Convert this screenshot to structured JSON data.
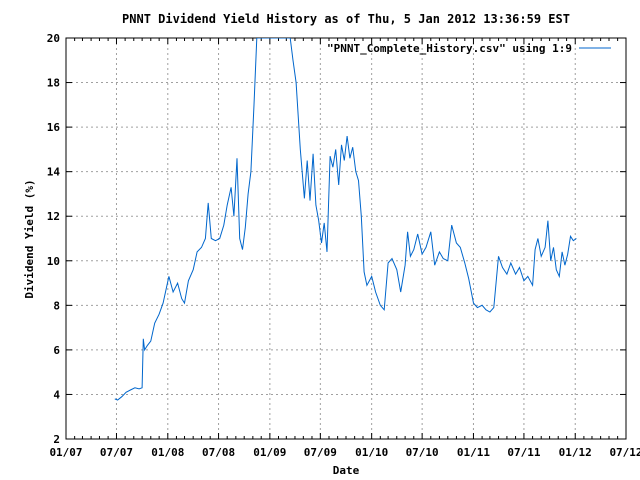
{
  "chart_data": {
    "type": "line",
    "title": "PNNT Dividend Yield History as of Thu, 5 Jan 2012 13:36:59 EST",
    "xlabel": "Date",
    "ylabel": "Dividend Yield (%)",
    "xlim": [
      "2007-01-01",
      "2012-07-01"
    ],
    "ylim": [
      2,
      20
    ],
    "x_ticks": [
      "01/07",
      "07/07",
      "01/08",
      "07/08",
      "01/09",
      "07/09",
      "01/10",
      "07/10",
      "01/11",
      "07/11",
      "01/12",
      "07/12"
    ],
    "y_ticks": [
      2,
      4,
      6,
      8,
      10,
      12,
      14,
      16,
      18,
      20
    ],
    "grid": true,
    "legend_position": "top-right",
    "series": [
      {
        "name": "\"PNNT_Complete_History.csv\" using 1:9",
        "color": "#0066cc",
        "points": [
          [
            "2007-06-25",
            3.8
          ],
          [
            "2007-07-05",
            3.75
          ],
          [
            "2007-07-20",
            3.9
          ],
          [
            "2007-08-05",
            4.1
          ],
          [
            "2007-08-20",
            4.2
          ],
          [
            "2007-09-05",
            4.3
          ],
          [
            "2007-09-20",
            4.25
          ],
          [
            "2007-10-01",
            4.3
          ],
          [
            "2007-10-05",
            6.5
          ],
          [
            "2007-10-10",
            6.0
          ],
          [
            "2007-10-20",
            6.2
          ],
          [
            "2007-11-01",
            6.4
          ],
          [
            "2007-11-15",
            7.2
          ],
          [
            "2007-12-01",
            7.6
          ],
          [
            "2007-12-15",
            8.1
          ],
          [
            "2008-01-05",
            9.3
          ],
          [
            "2008-01-20",
            8.6
          ],
          [
            "2008-02-05",
            9.0
          ],
          [
            "2008-02-20",
            8.3
          ],
          [
            "2008-03-01",
            8.1
          ],
          [
            "2008-03-15",
            9.1
          ],
          [
            "2008-04-01",
            9.6
          ],
          [
            "2008-04-15",
            10.4
          ],
          [
            "2008-05-01",
            10.6
          ],
          [
            "2008-05-15",
            11.0
          ],
          [
            "2008-05-25",
            12.6
          ],
          [
            "2008-06-05",
            11.0
          ],
          [
            "2008-06-20",
            10.9
          ],
          [
            "2008-07-05",
            11.0
          ],
          [
            "2008-07-20",
            11.6
          ],
          [
            "2008-08-01",
            12.5
          ],
          [
            "2008-08-15",
            13.3
          ],
          [
            "2008-08-25",
            12.0
          ],
          [
            "2008-09-05",
            14.6
          ],
          [
            "2008-09-15",
            11.0
          ],
          [
            "2008-09-25",
            10.5
          ],
          [
            "2008-10-05",
            11.5
          ],
          [
            "2008-10-15",
            13.0
          ],
          [
            "2008-10-25",
            14.0
          ],
          [
            "2008-11-05",
            17.0
          ],
          [
            "2008-11-15",
            20.0
          ],
          [
            "2009-01-01",
            20.0
          ],
          [
            "2009-03-01",
            20.0
          ],
          [
            "2009-03-15",
            20.0
          ],
          [
            "2009-03-25",
            19.0
          ],
          [
            "2009-04-05",
            18.0
          ],
          [
            "2009-04-20",
            15.0
          ],
          [
            "2009-05-05",
            12.8
          ],
          [
            "2009-05-15",
            14.5
          ],
          [
            "2009-05-25",
            12.7
          ],
          [
            "2009-06-05",
            14.8
          ],
          [
            "2009-06-15",
            12.5
          ],
          [
            "2009-06-25",
            11.8
          ],
          [
            "2009-07-05",
            10.8
          ],
          [
            "2009-07-15",
            11.7
          ],
          [
            "2009-07-25",
            10.4
          ],
          [
            "2009-08-05",
            14.7
          ],
          [
            "2009-08-15",
            14.2
          ],
          [
            "2009-08-25",
            15.0
          ],
          [
            "2009-09-05",
            13.4
          ],
          [
            "2009-09-15",
            15.2
          ],
          [
            "2009-09-25",
            14.5
          ],
          [
            "2009-10-05",
            15.6
          ],
          [
            "2009-10-15",
            14.6
          ],
          [
            "2009-10-25",
            15.1
          ],
          [
            "2009-11-05",
            14.0
          ],
          [
            "2009-11-15",
            13.6
          ],
          [
            "2009-11-25",
            12.0
          ],
          [
            "2009-12-05",
            9.5
          ],
          [
            "2009-12-15",
            8.9
          ],
          [
            "2010-01-01",
            9.3
          ],
          [
            "2010-01-15",
            8.6
          ],
          [
            "2010-02-01",
            8.0
          ],
          [
            "2010-02-15",
            7.8
          ],
          [
            "2010-03-01",
            9.9
          ],
          [
            "2010-03-15",
            10.1
          ],
          [
            "2010-04-01",
            9.6
          ],
          [
            "2010-04-15",
            8.6
          ],
          [
            "2010-05-01",
            9.8
          ],
          [
            "2010-05-10",
            11.3
          ],
          [
            "2010-05-20",
            10.2
          ],
          [
            "2010-06-01",
            10.5
          ],
          [
            "2010-06-15",
            11.2
          ],
          [
            "2010-07-01",
            10.3
          ],
          [
            "2010-07-15",
            10.6
          ],
          [
            "2010-08-01",
            11.3
          ],
          [
            "2010-08-15",
            9.8
          ],
          [
            "2010-09-01",
            10.4
          ],
          [
            "2010-09-15",
            10.1
          ],
          [
            "2010-10-01",
            10.0
          ],
          [
            "2010-10-15",
            11.6
          ],
          [
            "2010-11-01",
            10.8
          ],
          [
            "2010-11-15",
            10.6
          ],
          [
            "2010-12-01",
            9.9
          ],
          [
            "2010-12-15",
            9.2
          ],
          [
            "2011-01-01",
            8.1
          ],
          [
            "2011-01-15",
            7.9
          ],
          [
            "2011-02-01",
            8.0
          ],
          [
            "2011-02-15",
            7.8
          ],
          [
            "2011-03-01",
            7.7
          ],
          [
            "2011-03-15",
            7.9
          ],
          [
            "2011-04-01",
            10.2
          ],
          [
            "2011-04-15",
            9.7
          ],
          [
            "2011-05-01",
            9.4
          ],
          [
            "2011-05-15",
            9.9
          ],
          [
            "2011-06-01",
            9.4
          ],
          [
            "2011-06-15",
            9.7
          ],
          [
            "2011-07-01",
            9.1
          ],
          [
            "2011-07-15",
            9.3
          ],
          [
            "2011-08-01",
            8.9
          ],
          [
            "2011-08-10",
            10.5
          ],
          [
            "2011-08-20",
            11.0
          ],
          [
            "2011-09-01",
            10.2
          ],
          [
            "2011-09-15",
            10.6
          ],
          [
            "2011-09-25",
            11.8
          ],
          [
            "2011-10-05",
            10.0
          ],
          [
            "2011-10-15",
            10.6
          ],
          [
            "2011-10-25",
            9.6
          ],
          [
            "2011-11-05",
            9.3
          ],
          [
            "2011-11-15",
            10.4
          ],
          [
            "2011-11-25",
            9.8
          ],
          [
            "2011-12-05",
            10.3
          ],
          [
            "2011-12-15",
            11.1
          ],
          [
            "2011-12-25",
            10.9
          ],
          [
            "2012-01-05",
            11.0
          ]
        ]
      }
    ]
  }
}
